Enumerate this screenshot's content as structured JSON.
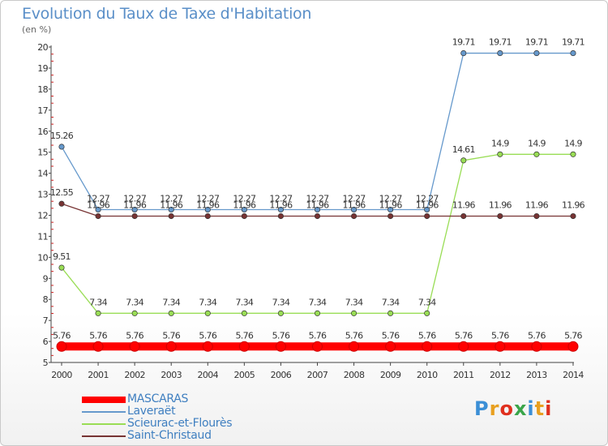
{
  "chart_data": {
    "type": "line",
    "title": "Evolution du Taux de Taxe d'Habitation",
    "subtitle": "(en %)",
    "categories": [
      "2000",
      "2001",
      "2002",
      "2003",
      "2004",
      "2005",
      "2006",
      "2007",
      "2008",
      "2009",
      "2010",
      "2011",
      "2012",
      "2013",
      "2014"
    ],
    "y_ticks": [
      "5",
      "6",
      "7",
      "8",
      "9",
      "10",
      "11",
      "12",
      "13",
      "14",
      "15",
      "16",
      "17",
      "18",
      "19",
      "20"
    ],
    "ylim": [
      5,
      20
    ],
    "grid": false,
    "legend_position": "bottom-left",
    "series": [
      {
        "name": "MASCARAS",
        "color": "#ff0000",
        "values": [
          5.76,
          5.76,
          5.76,
          5.76,
          5.76,
          5.76,
          5.76,
          5.76,
          5.76,
          5.76,
          5.76,
          5.76,
          5.76,
          5.76,
          5.76
        ],
        "labels": [
          "5.76",
          "5.76",
          "5.76",
          "5.76",
          "5.76",
          "5.76",
          "5.76",
          "5.76",
          "5.76",
          "5.76",
          "5.76",
          "5.76",
          "5.76",
          "5.76",
          "5.76"
        ]
      },
      {
        "name": "Laveraët",
        "color": "#6699cc",
        "values": [
          15.26,
          12.27,
          12.27,
          12.27,
          12.27,
          12.27,
          12.27,
          12.27,
          12.27,
          12.27,
          12.27,
          19.71,
          19.71,
          19.71,
          19.71
        ],
        "labels": [
          "15.26",
          "12.27",
          "12.27",
          "12.27",
          "12.27",
          "12.27",
          "12.27",
          "12.27",
          "12.27",
          "12.27",
          "12.27",
          "19.71",
          "19.71",
          "19.71",
          "19.71"
        ]
      },
      {
        "name": "Scieurac-et-Flourès",
        "color": "#99dd55",
        "values": [
          9.51,
          7.34,
          7.34,
          7.34,
          7.34,
          7.34,
          7.34,
          7.34,
          7.34,
          7.34,
          7.34,
          14.61,
          14.9,
          14.9,
          14.9
        ],
        "labels": [
          "9.51",
          "7.34",
          "7.34",
          "7.34",
          "7.34",
          "7.34",
          "7.34",
          "7.34",
          "7.34",
          "7.34",
          "7.34",
          "14.61",
          "14.9",
          "14.9",
          "14.9"
        ]
      },
      {
        "name": "Saint-Christaud",
        "color": "#773333",
        "values": [
          12.55,
          11.96,
          11.96,
          11.96,
          11.96,
          11.96,
          11.96,
          11.96,
          11.96,
          11.96,
          11.96,
          11.96,
          11.96,
          11.96,
          11.96
        ],
        "labels": [
          "12.55",
          "11.96",
          "11.96",
          "11.96",
          "11.96",
          "11.96",
          "11.96",
          "11.96",
          "11.96",
          "11.96",
          "11.96",
          "11.96",
          "11.96",
          "11.96",
          "11.96"
        ]
      }
    ]
  },
  "brand": {
    "text": "Proxiti"
  }
}
